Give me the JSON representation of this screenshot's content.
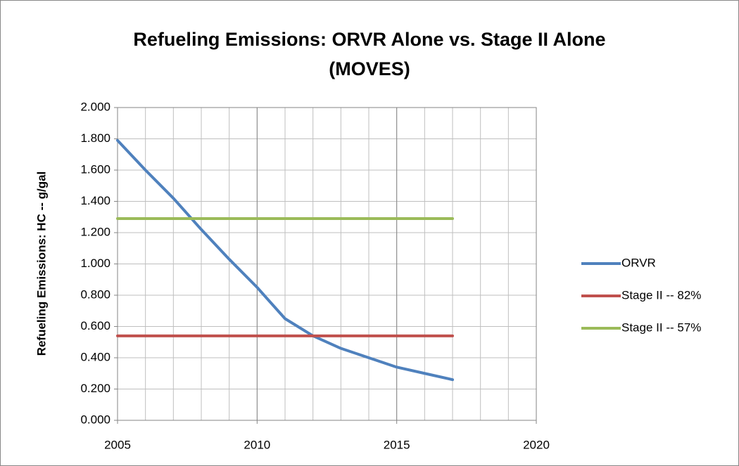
{
  "chart_data": {
    "type": "line",
    "title": [
      "Refueling Emissions: ORVR Alone vs. Stage II Alone",
      "(MOVES)"
    ],
    "y_label": "Refueling Emissions: HC -- g/gal",
    "x": [
      2005,
      2006,
      2007,
      2008,
      2009,
      2010,
      2011,
      2012,
      2013,
      2014,
      2015,
      2016,
      2017
    ],
    "series": [
      {
        "name": "ORVR",
        "color": "#4f81bd",
        "values": [
          1.79,
          1.6,
          1.42,
          1.22,
          1.03,
          0.85,
          0.65,
          0.54,
          0.46,
          0.4,
          0.34,
          0.3,
          0.26
        ]
      },
      {
        "name": "Stage II -- 82%",
        "color": "#c0504d",
        "values": [
          0.54,
          0.54,
          0.54,
          0.54,
          0.54,
          0.54,
          0.54,
          0.54,
          0.54,
          0.54,
          0.54,
          0.54,
          0.54
        ]
      },
      {
        "name": "Stage II -- 57%",
        "color": "#9bbb59",
        "values": [
          1.29,
          1.29,
          1.29,
          1.29,
          1.29,
          1.29,
          1.29,
          1.29,
          1.29,
          1.29,
          1.29,
          1.29,
          1.29
        ]
      }
    ],
    "xlim": [
      2005,
      2020
    ],
    "xticks": [
      2005,
      2010,
      2015,
      2020
    ],
    "xgrid_step": 1,
    "ylim": [
      0,
      2
    ],
    "yticks": [
      {
        "value": 0,
        "label": "0.000"
      },
      {
        "value": 0.2,
        "label": "0.200"
      },
      {
        "value": 0.4,
        "label": "0.400"
      },
      {
        "value": 0.6,
        "label": "0.600"
      },
      {
        "value": 0.8,
        "label": "0.800"
      },
      {
        "value": 1,
        "label": "1.000"
      },
      {
        "value": 1.2,
        "label": "1.200"
      },
      {
        "value": 1.4,
        "label": "1.400"
      },
      {
        "value": 1.6,
        "label": "1.600"
      },
      {
        "value": 1.8,
        "label": "1.800"
      },
      {
        "value": 2,
        "label": "2.000"
      }
    ],
    "grid": true,
    "legend": "right"
  }
}
